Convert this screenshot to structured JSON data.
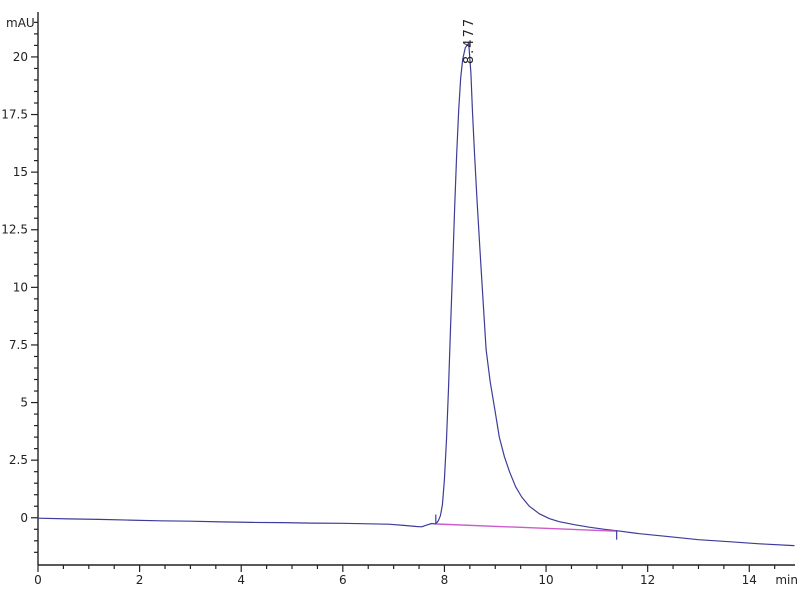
{
  "chart_data": {
    "type": "line",
    "title": "",
    "ylabel": "mAU",
    "xlabel": "min",
    "xlim": [
      0,
      14.9
    ],
    "ylim": [
      -2.05,
      21.95
    ],
    "x_major_ticks": [
      0,
      2,
      4,
      6,
      8,
      10,
      12,
      14
    ],
    "x_minor_step": 0.5,
    "y_major_ticks": [
      0,
      2.5,
      5,
      7.5,
      10,
      12.5,
      15,
      17.5,
      20
    ],
    "y_minor_step": 0.5,
    "grid": false,
    "legend": "none",
    "background_color": "#ffffff",
    "axis_color": "#222222",
    "peak": {
      "label": "8.477",
      "retention_time": 8.477,
      "apex_mau": 20.6,
      "start_time": 7.83,
      "end_time": 11.39
    },
    "series": [
      {
        "name": "detector-signal",
        "color": "#3c3c99",
        "width": 1.2,
        "points": [
          [
            0,
            -0.02
          ],
          [
            0.6,
            -0.05
          ],
          [
            1.2,
            -0.07
          ],
          [
            1.8,
            -0.1
          ],
          [
            2.4,
            -0.13
          ],
          [
            3.0,
            -0.15
          ],
          [
            3.6,
            -0.18
          ],
          [
            4.2,
            -0.2
          ],
          [
            4.8,
            -0.21
          ],
          [
            5.4,
            -0.23
          ],
          [
            6.0,
            -0.24
          ],
          [
            6.5,
            -0.26
          ],
          [
            6.9,
            -0.28
          ],
          [
            7.2,
            -0.33
          ],
          [
            7.45,
            -0.38
          ],
          [
            7.55,
            -0.39
          ],
          [
            7.65,
            -0.32
          ],
          [
            7.75,
            -0.25
          ],
          [
            7.83,
            -0.27
          ],
          [
            7.88,
            -0.13
          ],
          [
            7.92,
            0.09
          ],
          [
            7.96,
            0.56
          ],
          [
            8.0,
            1.65
          ],
          [
            8.04,
            3.4
          ],
          [
            8.08,
            5.6
          ],
          [
            8.12,
            8.2
          ],
          [
            8.16,
            10.8
          ],
          [
            8.2,
            13.4
          ],
          [
            8.24,
            15.7
          ],
          [
            8.28,
            17.7
          ],
          [
            8.32,
            19.1
          ],
          [
            8.36,
            19.9
          ],
          [
            8.41,
            20.4
          ],
          [
            8.477,
            20.6
          ],
          [
            8.52,
            19.3
          ],
          [
            8.55,
            17.7
          ],
          [
            8.59,
            15.9
          ],
          [
            8.64,
            13.8
          ],
          [
            8.7,
            11.6
          ],
          [
            8.76,
            9.4
          ],
          [
            8.82,
            7.3
          ],
          [
            8.9,
            5.9
          ],
          [
            9.0,
            4.6
          ],
          [
            9.08,
            3.5
          ],
          [
            9.18,
            2.65
          ],
          [
            9.28,
            2.0
          ],
          [
            9.4,
            1.35
          ],
          [
            9.52,
            0.9
          ],
          [
            9.67,
            0.5
          ],
          [
            9.87,
            0.17
          ],
          [
            10.07,
            -0.04
          ],
          [
            10.26,
            -0.17
          ],
          [
            10.56,
            -0.3
          ],
          [
            10.85,
            -0.41
          ],
          [
            11.15,
            -0.5
          ],
          [
            11.39,
            -0.56
          ],
          [
            11.84,
            -0.69
          ],
          [
            12.43,
            -0.82
          ],
          [
            13.0,
            -0.95
          ],
          [
            13.6,
            -1.04
          ],
          [
            14.2,
            -1.13
          ],
          [
            14.88,
            -1.21
          ]
        ]
      },
      {
        "name": "integration-baseline",
        "color": "#cc5ccc",
        "width": 1.4,
        "points": [
          [
            7.85,
            -0.27
          ],
          [
            11.39,
            -0.585
          ]
        ]
      }
    ],
    "peak_markers": [
      {
        "x": 7.83,
        "v1": -0.28,
        "v2": 0.14
      },
      {
        "x": 11.39,
        "v1": -0.55,
        "v2": -0.95
      }
    ]
  }
}
